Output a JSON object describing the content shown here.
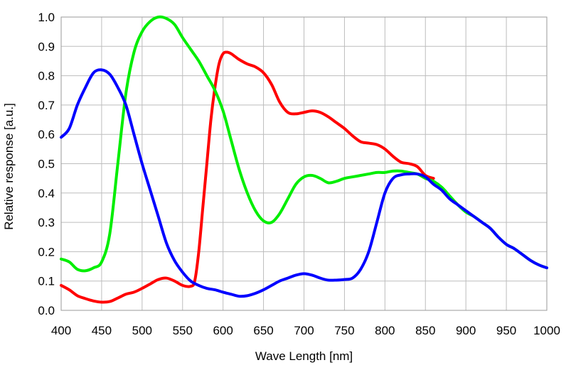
{
  "chart_data": {
    "type": "line",
    "title": "",
    "xlabel": "Wave Length [nm]",
    "ylabel": "Relative response [a.u.]",
    "xlim": [
      400,
      1000
    ],
    "ylim": [
      0.0,
      1.0
    ],
    "xticks": [
      "400",
      "450",
      "500",
      "550",
      "600",
      "650",
      "700",
      "750",
      "800",
      "850",
      "900",
      "950",
      "1000"
    ],
    "yticks": [
      "0.0",
      "0.1",
      "0.2",
      "0.3",
      "0.4",
      "0.5",
      "0.6",
      "0.7",
      "0.8",
      "0.9",
      "1.0"
    ],
    "grid": true,
    "legend": "none",
    "series": [
      {
        "name": "red",
        "color": "#ff0000",
        "x": [
          400,
          410,
          420,
          430,
          440,
          450,
          460,
          470,
          480,
          490,
          500,
          510,
          520,
          530,
          540,
          550,
          560,
          565,
          570,
          575,
          580,
          585,
          590,
          595,
          600,
          605,
          610,
          615,
          620,
          630,
          640,
          650,
          660,
          670,
          680,
          690,
          700,
          710,
          720,
          730,
          740,
          750,
          760,
          770,
          780,
          790,
          800,
          810,
          820,
          830,
          840,
          850,
          860
        ],
        "y": [
          0.085,
          0.07,
          0.05,
          0.04,
          0.032,
          0.028,
          0.03,
          0.042,
          0.055,
          0.062,
          0.075,
          0.09,
          0.105,
          0.11,
          0.1,
          0.085,
          0.082,
          0.1,
          0.2,
          0.35,
          0.5,
          0.65,
          0.76,
          0.84,
          0.875,
          0.88,
          0.875,
          0.865,
          0.855,
          0.84,
          0.83,
          0.81,
          0.77,
          0.71,
          0.675,
          0.67,
          0.675,
          0.68,
          0.675,
          0.66,
          0.64,
          0.62,
          0.595,
          0.575,
          0.57,
          0.565,
          0.55,
          0.525,
          0.505,
          0.5,
          0.49,
          0.46,
          0.45
        ]
      },
      {
        "name": "green",
        "color": "#00ee00",
        "x": [
          400,
          410,
          420,
          430,
          440,
          450,
          460,
          470,
          480,
          490,
          500,
          510,
          520,
          530,
          540,
          550,
          560,
          570,
          580,
          590,
          600,
          610,
          620,
          630,
          640,
          650,
          660,
          670,
          680,
          690,
          700,
          710,
          720,
          730,
          740,
          750,
          760,
          770,
          780,
          790,
          800,
          810,
          820,
          830,
          840,
          850,
          860,
          870,
          880,
          890,
          900,
          910,
          920,
          930,
          940,
          950,
          960,
          970,
          980,
          990,
          1000
        ],
        "y": [
          0.175,
          0.165,
          0.14,
          0.135,
          0.145,
          0.165,
          0.26,
          0.5,
          0.74,
          0.88,
          0.95,
          0.985,
          1.0,
          0.995,
          0.975,
          0.93,
          0.89,
          0.85,
          0.8,
          0.75,
          0.68,
          0.58,
          0.48,
          0.4,
          0.34,
          0.305,
          0.3,
          0.33,
          0.38,
          0.43,
          0.455,
          0.46,
          0.45,
          0.435,
          0.44,
          0.45,
          0.455,
          0.46,
          0.465,
          0.47,
          0.47,
          0.475,
          0.475,
          0.47,
          0.465,
          0.45,
          0.44,
          0.42,
          0.39,
          0.36,
          0.335,
          0.32,
          0.3,
          0.28,
          0.25,
          0.225,
          0.21,
          0.19,
          0.17,
          0.155,
          0.145
        ]
      },
      {
        "name": "blue",
        "color": "#0000ff",
        "x": [
          400,
          410,
          420,
          430,
          440,
          450,
          460,
          470,
          480,
          490,
          500,
          510,
          520,
          530,
          540,
          550,
          560,
          570,
          580,
          590,
          600,
          610,
          620,
          630,
          640,
          650,
          660,
          670,
          680,
          690,
          700,
          710,
          720,
          730,
          740,
          750,
          760,
          770,
          780,
          790,
          800,
          810,
          820,
          830,
          840,
          850,
          860,
          870,
          880,
          890,
          900,
          910,
          920,
          930,
          940,
          950,
          960,
          970,
          980,
          990,
          1000
        ],
        "y": [
          0.59,
          0.62,
          0.7,
          0.76,
          0.81,
          0.82,
          0.805,
          0.76,
          0.7,
          0.6,
          0.5,
          0.41,
          0.32,
          0.23,
          0.17,
          0.13,
          0.1,
          0.085,
          0.075,
          0.07,
          0.062,
          0.055,
          0.048,
          0.05,
          0.058,
          0.07,
          0.085,
          0.1,
          0.11,
          0.12,
          0.125,
          0.12,
          0.11,
          0.103,
          0.103,
          0.105,
          0.11,
          0.14,
          0.2,
          0.3,
          0.4,
          0.45,
          0.462,
          0.465,
          0.465,
          0.455,
          0.43,
          0.41,
          0.38,
          0.36,
          0.34,
          0.32,
          0.3,
          0.28,
          0.25,
          0.225,
          0.21,
          0.19,
          0.17,
          0.155,
          0.145
        ]
      }
    ]
  }
}
